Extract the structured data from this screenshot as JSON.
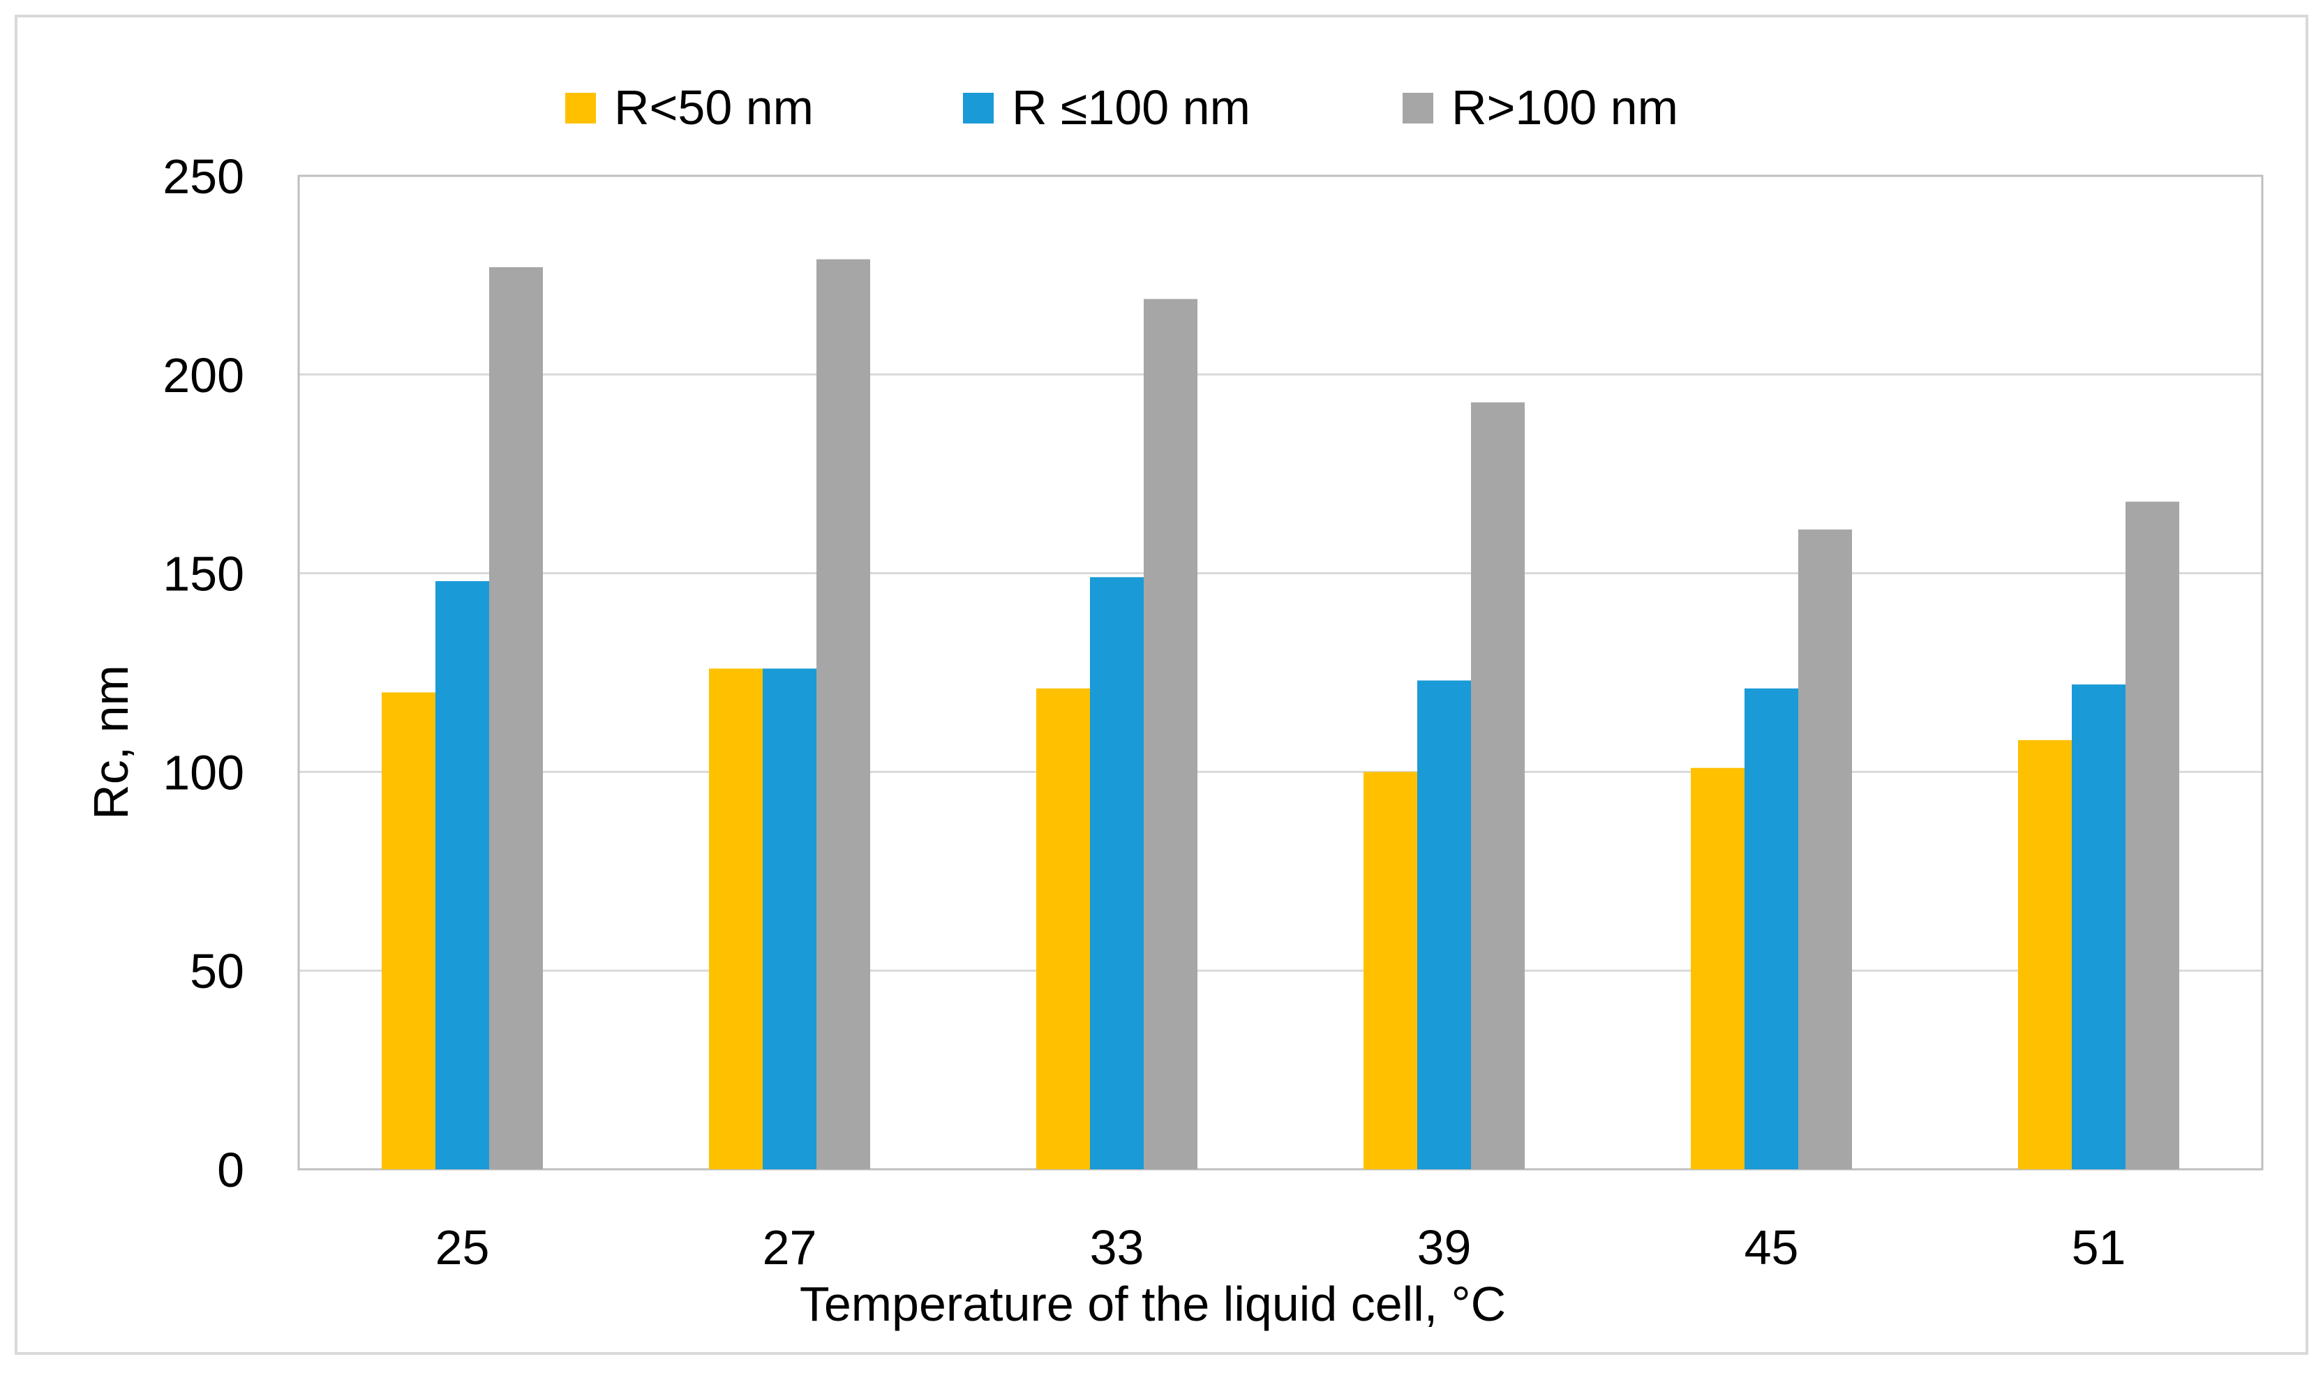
{
  "chart_data": {
    "type": "bar",
    "title": "",
    "xlabel": "Temperature of the liquid cell, °C",
    "ylabel": "Rc, nm",
    "categories": [
      "25",
      "27",
      "33",
      "39",
      "45",
      "51"
    ],
    "ylim": [
      0,
      250
    ],
    "yticks": [
      "0",
      "50",
      "100",
      "150",
      "200",
      "250"
    ],
    "grid": true,
    "legend_position": "top-center",
    "series": [
      {
        "name": "R<50 nm",
        "color": "#ffc000",
        "values": [
          120,
          126,
          121,
          100,
          101,
          108
        ]
      },
      {
        "name": "R ≤100 nm",
        "color": "#1a9ad6",
        "values": [
          148,
          126,
          149,
          123,
          121,
          122
        ]
      },
      {
        "name": "R>100 nm",
        "color": "#a6a6a6",
        "values": [
          227,
          229,
          219,
          193,
          161,
          168
        ]
      }
    ]
  }
}
